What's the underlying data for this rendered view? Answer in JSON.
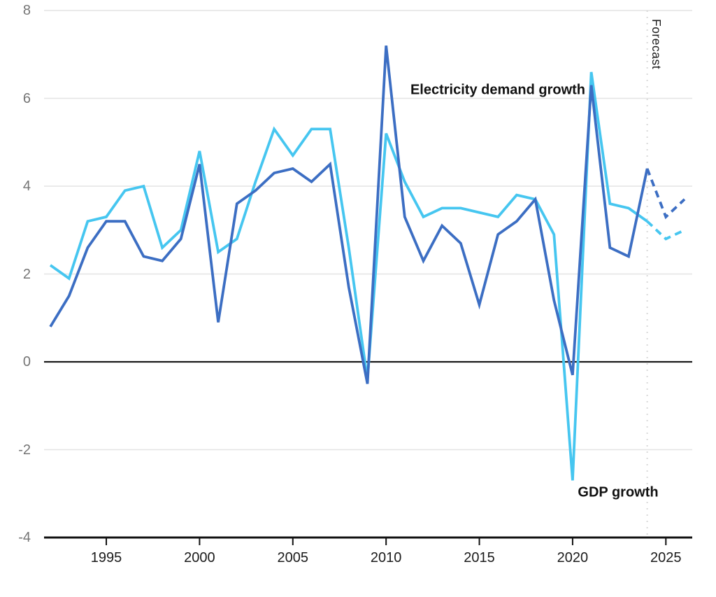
{
  "chart_data": {
    "type": "line",
    "title": "",
    "xlabel": "",
    "ylabel": "",
    "xlim": [
      1992,
      2026
    ],
    "ylim": [
      -4,
      8
    ],
    "grid": "horizontal",
    "legend_position": "inline-annotations",
    "x": [
      1992,
      1993,
      1994,
      1995,
      1996,
      1997,
      1998,
      1999,
      2000,
      2001,
      2002,
      2003,
      2004,
      2005,
      2006,
      2007,
      2008,
      2009,
      2010,
      2011,
      2012,
      2013,
      2014,
      2015,
      2016,
      2017,
      2018,
      2019,
      2020,
      2021,
      2022,
      2023,
      2024,
      2025,
      2026
    ],
    "x_ticks": [
      1995,
      2000,
      2005,
      2010,
      2015,
      2020,
      2025
    ],
    "y_ticks": [
      8,
      6,
      4,
      2,
      0,
      -2,
      -4
    ],
    "forecast_start_year": 2024,
    "forecast_label": "Forecast",
    "series": [
      {
        "name": "Electricity demand growth",
        "color": "#3C6EC3",
        "line_style": "solid, dashed after forecast start",
        "values": [
          0.8,
          1.5,
          2.6,
          3.2,
          3.2,
          2.4,
          2.3,
          2.8,
          4.5,
          0.9,
          3.6,
          3.9,
          4.3,
          4.4,
          4.1,
          4.5,
          1.7,
          -0.5,
          7.2,
          3.3,
          2.3,
          3.1,
          2.7,
          1.3,
          2.9,
          3.2,
          3.7,
          1.4,
          -0.3,
          6.3,
          2.6,
          2.4,
          4.4,
          3.3,
          3.7
        ]
      },
      {
        "name": "GDP growth",
        "color": "#46C6F0",
        "line_style": "solid, dashed after forecast start",
        "values": [
          2.2,
          1.9,
          3.2,
          3.3,
          3.9,
          4.0,
          2.6,
          3.0,
          4.8,
          2.5,
          2.8,
          4.1,
          5.3,
          4.7,
          5.3,
          5.3,
          2.6,
          -0.4,
          5.2,
          4.1,
          3.3,
          3.5,
          3.5,
          3.4,
          3.3,
          3.8,
          3.7,
          2.9,
          -2.7,
          6.6,
          3.6,
          3.5,
          3.2,
          2.8,
          3.0
        ]
      }
    ],
    "annotations": [
      {
        "text": "Electricity demand growth",
        "near_year": 2012,
        "near_value": 6.2
      },
      {
        "text": "GDP growth",
        "near_year": 2022,
        "near_value": -3.0
      },
      {
        "text": "Forecast",
        "near_year": 2024,
        "near_value": 7.5,
        "rotation": "vertical"
      }
    ],
    "colors": {
      "gridline": "#e4e4e4",
      "zero_line": "#1a1a1a",
      "axis_line": "#111111",
      "forecast_divider": "#d9d9d9",
      "y_tick_label": "#757575",
      "x_tick_label": "#1b1b1b",
      "annotation_text": "#111111"
    }
  }
}
